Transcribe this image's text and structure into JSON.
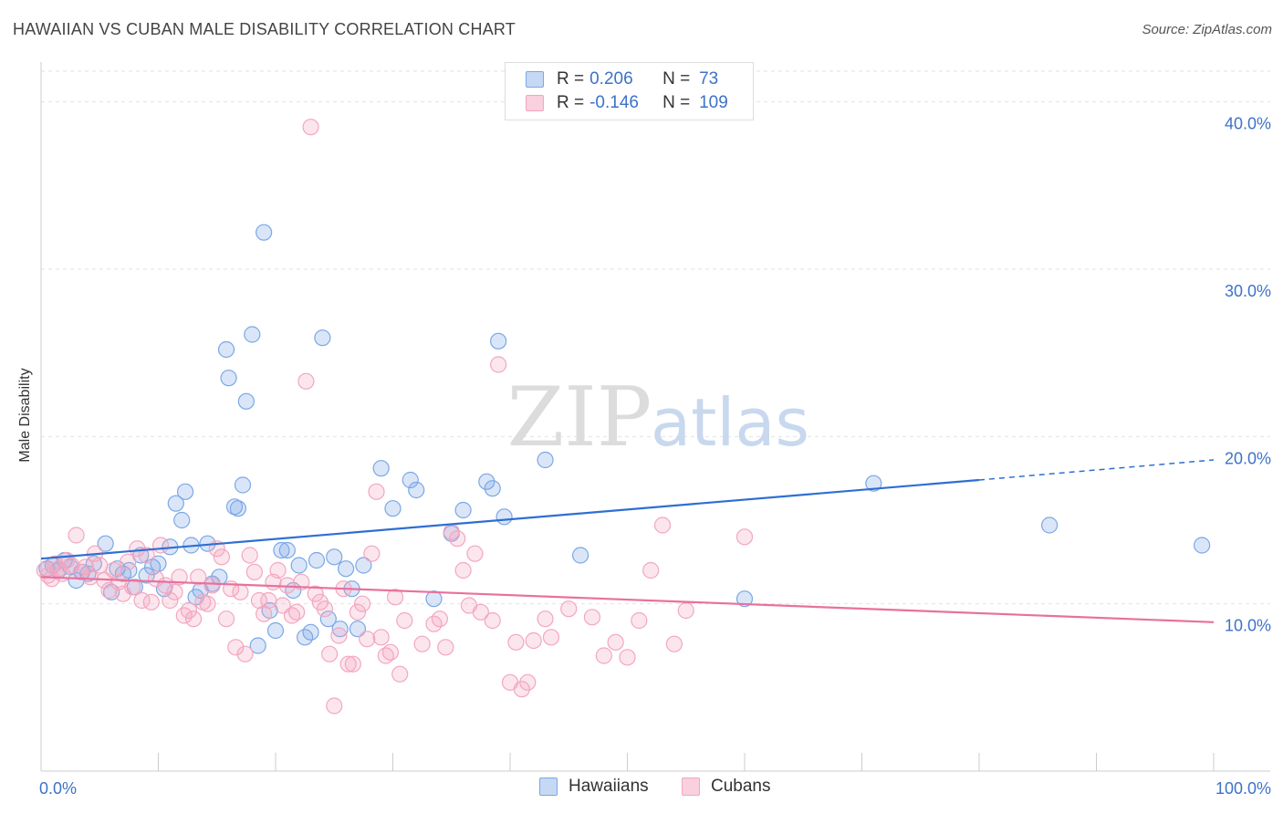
{
  "header": {
    "title": "HAWAIIAN VS CUBAN MALE DISABILITY CORRELATION CHART",
    "source": "Source: ZipAtlas.com"
  },
  "watermark": {
    "zip": "ZIP",
    "atlas": "atlas"
  },
  "legend_top": [
    {
      "r_label": "R =",
      "r_value": "0.206",
      "n_label": "N =",
      "n_value": "73",
      "color": "#7aa7e6"
    },
    {
      "r_label": "R =",
      "r_value": "-0.146",
      "n_label": "N =",
      "n_value": "109",
      "color": "#f3a6bf"
    }
  ],
  "chart_data": {
    "type": "scatter",
    "title": "HAWAIIAN VS CUBAN MALE DISABILITY CORRELATION CHART",
    "xlabel": "",
    "ylabel": "Male Disability",
    "xlim": [
      0,
      100
    ],
    "ylim": [
      0,
      42
    ],
    "x_tick_labels": [
      "0.0%",
      "100.0%"
    ],
    "y_ticks": [
      10,
      20,
      30,
      40
    ],
    "y_tick_labels": [
      "10.0%",
      "20.0%",
      "30.0%",
      "40.0%"
    ],
    "grid": true,
    "legend_position": "bottom",
    "series": [
      {
        "name": "Hawaiians",
        "color": "#7aa7e6",
        "line_color": "#2e6fd1",
        "trend": {
          "x0": 0,
          "y0": 12.7,
          "x1": 80,
          "y1": 17.4,
          "dash_to_x": 100,
          "dash_to_y": 18.6
        },
        "points": [
          [
            0.5,
            12.1
          ],
          [
            1.0,
            12.3
          ],
          [
            1.5,
            12.0
          ],
          [
            2.0,
            12.6
          ],
          [
            2.5,
            12.2
          ],
          [
            3.0,
            11.4
          ],
          [
            3.5,
            11.9
          ],
          [
            4.0,
            11.8
          ],
          [
            4.5,
            12.4
          ],
          [
            5.5,
            13.6
          ],
          [
            6.0,
            10.7
          ],
          [
            6.5,
            12.1
          ],
          [
            7.0,
            11.8
          ],
          [
            7.5,
            12.0
          ],
          [
            8.0,
            11.0
          ],
          [
            8.5,
            12.9
          ],
          [
            9.0,
            11.7
          ],
          [
            9.5,
            12.2
          ],
          [
            10.0,
            12.4
          ],
          [
            10.5,
            10.9
          ],
          [
            11.0,
            13.4
          ],
          [
            11.5,
            16.0
          ],
          [
            12.0,
            15.0
          ],
          [
            12.3,
            16.7
          ],
          [
            12.8,
            13.5
          ],
          [
            13.2,
            10.4
          ],
          [
            13.6,
            10.8
          ],
          [
            14.2,
            13.6
          ],
          [
            14.6,
            11.2
          ],
          [
            15.2,
            11.6
          ],
          [
            15.8,
            25.2
          ],
          [
            16.0,
            23.5
          ],
          [
            16.5,
            15.8
          ],
          [
            16.8,
            15.7
          ],
          [
            17.2,
            17.1
          ],
          [
            17.5,
            22.1
          ],
          [
            18.0,
            26.1
          ],
          [
            18.5,
            7.5
          ],
          [
            19.0,
            32.2
          ],
          [
            19.5,
            9.6
          ],
          [
            20.0,
            8.4
          ],
          [
            20.5,
            13.2
          ],
          [
            21.0,
            13.2
          ],
          [
            21.5,
            10.8
          ],
          [
            22.0,
            12.3
          ],
          [
            22.5,
            8.0
          ],
          [
            23.0,
            8.3
          ],
          [
            23.5,
            12.6
          ],
          [
            24.0,
            25.9
          ],
          [
            24.5,
            9.1
          ],
          [
            25.0,
            12.8
          ],
          [
            25.5,
            8.5
          ],
          [
            26.0,
            12.1
          ],
          [
            26.5,
            10.9
          ],
          [
            27.0,
            8.5
          ],
          [
            27.5,
            12.3
          ],
          [
            29.0,
            18.1
          ],
          [
            30.0,
            15.7
          ],
          [
            31.5,
            17.4
          ],
          [
            32.0,
            16.8
          ],
          [
            33.5,
            10.3
          ],
          [
            35.0,
            14.2
          ],
          [
            36.0,
            15.6
          ],
          [
            38.0,
            17.3
          ],
          [
            38.5,
            16.9
          ],
          [
            39.0,
            25.7
          ],
          [
            39.5,
            15.2
          ],
          [
            43.0,
            18.6
          ],
          [
            46.0,
            12.9
          ],
          [
            60.0,
            10.3
          ],
          [
            71.0,
            17.2
          ],
          [
            86.0,
            14.7
          ],
          [
            99.0,
            13.5
          ]
        ]
      },
      {
        "name": "Cubans",
        "color": "#f3a6bf",
        "line_color": "#e8719c",
        "trend": {
          "x0": 0,
          "y0": 11.6,
          "x1": 100,
          "y1": 8.9
        },
        "points": [
          [
            0.3,
            12.0
          ],
          [
            0.6,
            11.7
          ],
          [
            0.9,
            11.5
          ],
          [
            1.2,
            12.4
          ],
          [
            1.5,
            12.1
          ],
          [
            1.8,
            11.8
          ],
          [
            2.2,
            12.6
          ],
          [
            2.6,
            12.3
          ],
          [
            3.0,
            14.1
          ],
          [
            3.4,
            11.9
          ],
          [
            3.8,
            12.2
          ],
          [
            4.2,
            11.6
          ],
          [
            4.6,
            13.0
          ],
          [
            5.0,
            12.3
          ],
          [
            5.4,
            11.4
          ],
          [
            5.8,
            10.8
          ],
          [
            6.2,
            12.0
          ],
          [
            6.6,
            11.3
          ],
          [
            7.0,
            10.6
          ],
          [
            7.4,
            12.5
          ],
          [
            7.8,
            11.0
          ],
          [
            8.2,
            13.3
          ],
          [
            8.6,
            10.2
          ],
          [
            9.0,
            12.9
          ],
          [
            9.4,
            10.1
          ],
          [
            9.8,
            11.5
          ],
          [
            10.2,
            13.5
          ],
          [
            10.6,
            11.1
          ],
          [
            11.0,
            10.2
          ],
          [
            11.4,
            10.7
          ],
          [
            11.8,
            11.6
          ],
          [
            12.2,
            9.3
          ],
          [
            12.6,
            9.6
          ],
          [
            13.0,
            9.1
          ],
          [
            13.4,
            11.6
          ],
          [
            13.8,
            10.1
          ],
          [
            14.2,
            10.0
          ],
          [
            14.6,
            11.1
          ],
          [
            15.0,
            13.3
          ],
          [
            15.4,
            12.8
          ],
          [
            15.8,
            9.1
          ],
          [
            16.2,
            10.9
          ],
          [
            16.6,
            7.4
          ],
          [
            17.0,
            10.7
          ],
          [
            17.4,
            7.0
          ],
          [
            17.8,
            12.9
          ],
          [
            18.2,
            11.9
          ],
          [
            18.6,
            10.2
          ],
          [
            19.0,
            9.4
          ],
          [
            19.4,
            10.2
          ],
          [
            19.8,
            11.3
          ],
          [
            20.2,
            12.0
          ],
          [
            20.6,
            9.9
          ],
          [
            21.0,
            11.1
          ],
          [
            21.4,
            9.3
          ],
          [
            21.8,
            9.5
          ],
          [
            22.2,
            11.3
          ],
          [
            22.6,
            23.3
          ],
          [
            23.0,
            38.5
          ],
          [
            23.4,
            10.6
          ],
          [
            23.8,
            10.1
          ],
          [
            24.2,
            9.7
          ],
          [
            24.6,
            7.0
          ],
          [
            25.0,
            3.9
          ],
          [
            25.4,
            8.1
          ],
          [
            25.8,
            10.9
          ],
          [
            26.2,
            6.4
          ],
          [
            26.6,
            6.4
          ],
          [
            27.0,
            9.5
          ],
          [
            27.4,
            10.0
          ],
          [
            27.8,
            7.9
          ],
          [
            28.2,
            13.0
          ],
          [
            28.6,
            16.7
          ],
          [
            29.0,
            8.0
          ],
          [
            29.4,
            6.9
          ],
          [
            29.8,
            7.1
          ],
          [
            30.2,
            10.4
          ],
          [
            30.6,
            5.8
          ],
          [
            31.0,
            9.0
          ],
          [
            32.5,
            7.6
          ],
          [
            33.5,
            8.8
          ],
          [
            34.0,
            9.1
          ],
          [
            34.5,
            7.4
          ],
          [
            35.0,
            14.3
          ],
          [
            35.5,
            13.9
          ],
          [
            36.0,
            12.0
          ],
          [
            36.5,
            9.9
          ],
          [
            37.0,
            13.0
          ],
          [
            37.5,
            9.5
          ],
          [
            38.5,
            9.0
          ],
          [
            39.0,
            24.3
          ],
          [
            40.0,
            5.3
          ],
          [
            40.5,
            7.7
          ],
          [
            41.0,
            4.9
          ],
          [
            41.5,
            5.3
          ],
          [
            42.0,
            7.8
          ],
          [
            43.0,
            9.1
          ],
          [
            43.5,
            8.0
          ],
          [
            45.0,
            9.7
          ],
          [
            47.0,
            9.2
          ],
          [
            48.0,
            6.9
          ],
          [
            49.0,
            7.7
          ],
          [
            50.0,
            6.8
          ],
          [
            51.0,
            9.0
          ],
          [
            52.0,
            12.0
          ],
          [
            53.0,
            14.7
          ],
          [
            54.0,
            7.6
          ],
          [
            55.0,
            9.6
          ],
          [
            60.0,
            14.0
          ]
        ]
      }
    ]
  },
  "legend_bottom": [
    {
      "label": "Hawaiians",
      "color": "#7aa7e6"
    },
    {
      "label": "Cubans",
      "color": "#f3a6bf"
    }
  ]
}
